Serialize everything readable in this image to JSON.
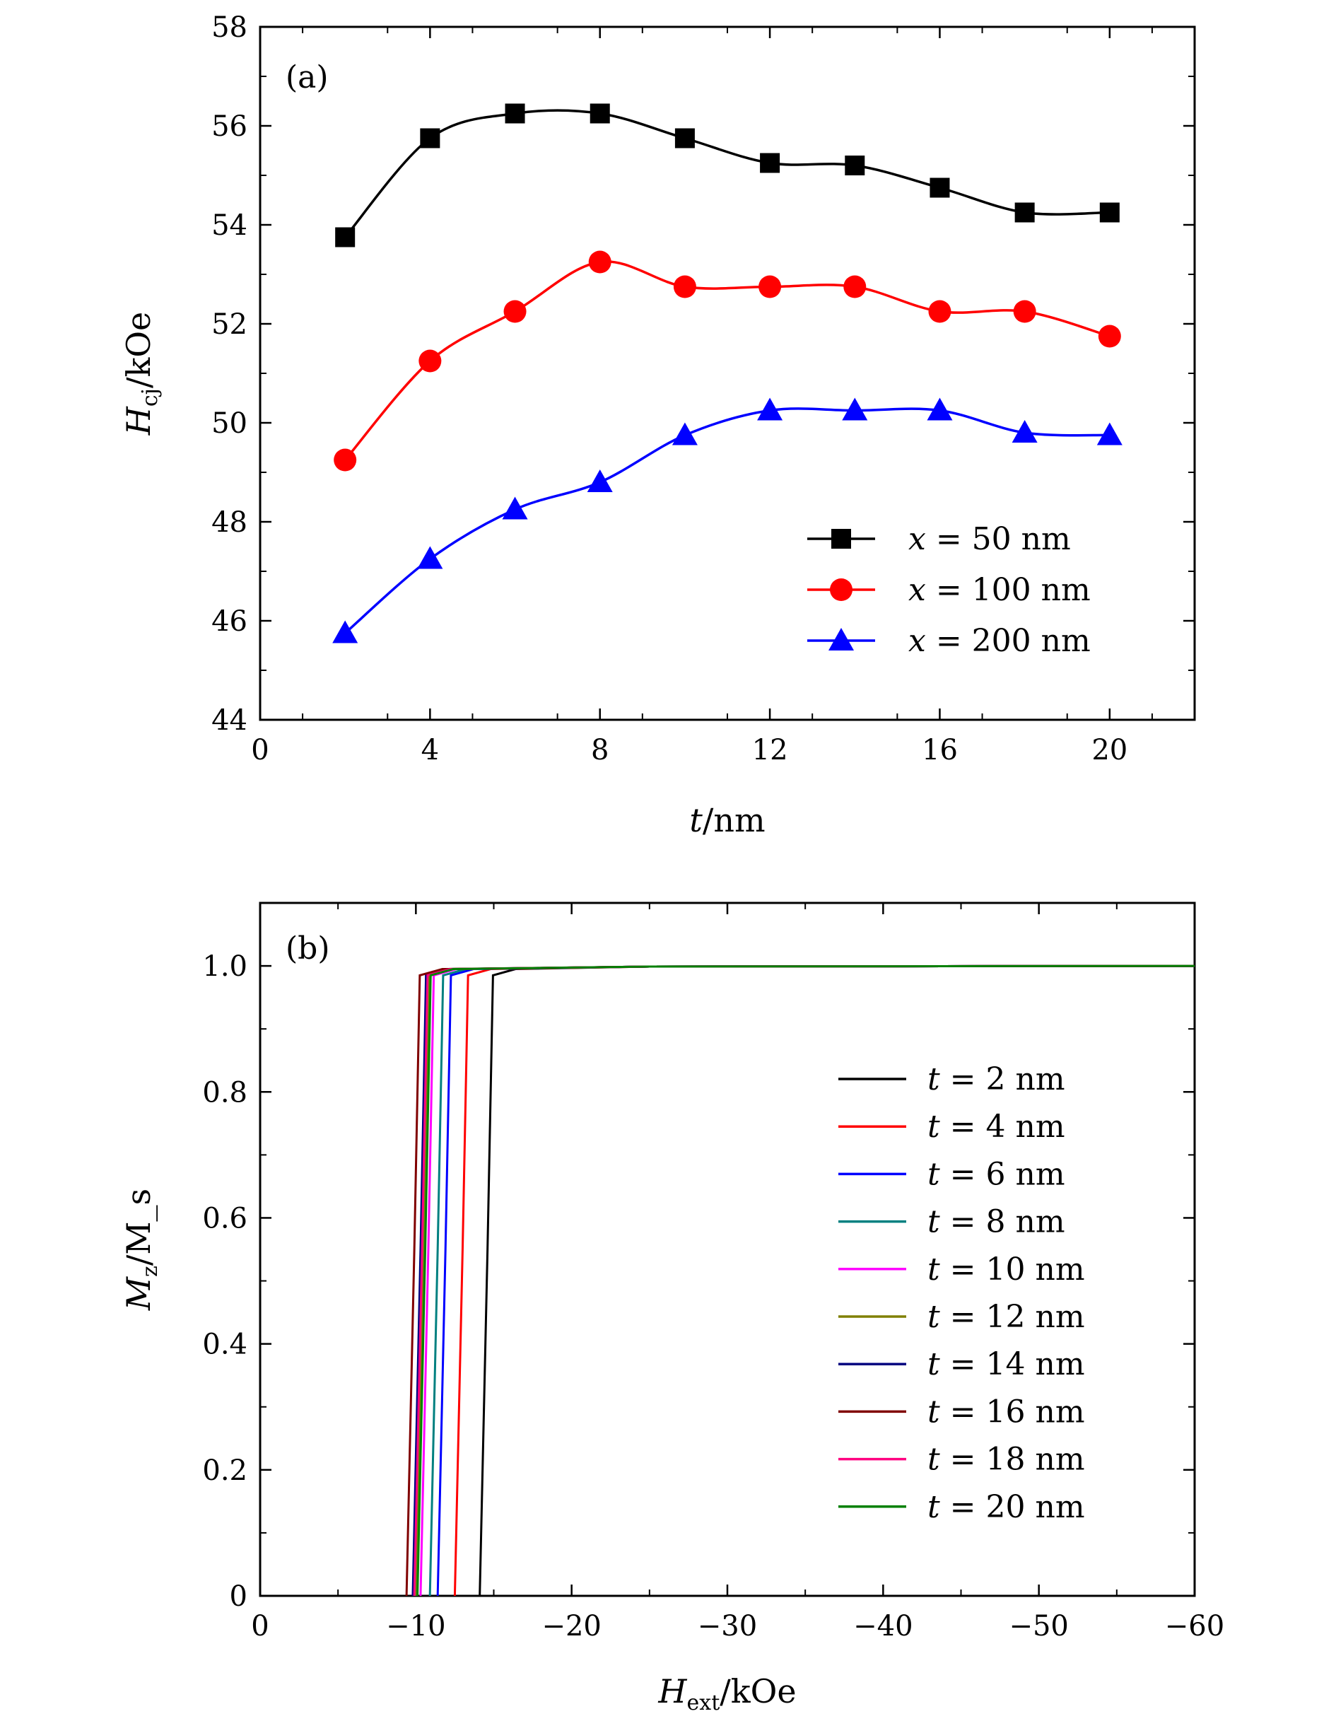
{
  "chart_data": [
    {
      "type": "line",
      "panel_label": "(a)",
      "xlabel": "t/nm",
      "ylabel": "H_cj/kOe",
      "xlim": [
        0,
        22
      ],
      "ylim": [
        44,
        58
      ],
      "xticks": [
        0,
        4,
        8,
        12,
        16,
        20
      ],
      "yticks": [
        44,
        46,
        48,
        50,
        52,
        54,
        56,
        58
      ],
      "x": [
        2,
        4,
        6,
        8,
        10,
        12,
        14,
        16,
        18,
        20
      ],
      "legend_position": "bottom-right",
      "series": [
        {
          "name": "x = 50 nm",
          "color": "#000000",
          "marker": "square",
          "values": [
            53.75,
            55.75,
            56.25,
            56.25,
            55.75,
            55.25,
            55.2,
            54.75,
            54.25,
            54.25
          ]
        },
        {
          "name": "x = 100 nm",
          "color": "#ff0000",
          "marker": "circle",
          "values": [
            49.25,
            51.25,
            52.25,
            53.25,
            52.75,
            52.75,
            52.75,
            52.25,
            52.25,
            51.75
          ]
        },
        {
          "name": "x = 200 nm",
          "color": "#0000ff",
          "marker": "triangle",
          "values": [
            45.75,
            47.25,
            48.25,
            48.8,
            49.75,
            50.25,
            50.25,
            50.25,
            49.8,
            49.75
          ]
        }
      ]
    },
    {
      "type": "line",
      "panel_label": "(b)",
      "xlabel": "H_ext/kOe",
      "ylabel": "M_z/M_s",
      "xlim": [
        0,
        -60
      ],
      "ylim": [
        0,
        1.1
      ],
      "xticks": [
        0,
        -10,
        -20,
        -30,
        -40,
        -50,
        -60
      ],
      "yticks": [
        0,
        0.2,
        0.4,
        0.6,
        0.8,
        1.0
      ],
      "legend_position": "right",
      "series": [
        {
          "name": "t = 2 nm",
          "color": "#000000",
          "switch_field": -14.4
        },
        {
          "name": "t = 4 nm",
          "color": "#ff0000",
          "switch_field": -12.8
        },
        {
          "name": "t = 6 nm",
          "color": "#0000ff",
          "switch_field": -11.7
        },
        {
          "name": "t = 8 nm",
          "color": "#008080",
          "switch_field": -11.2
        },
        {
          "name": "t = 10 nm",
          "color": "#ff00ff",
          "switch_field": -10.6
        },
        {
          "name": "t = 12 nm",
          "color": "#808000",
          "switch_field": -10.3
        },
        {
          "name": "t = 14 nm",
          "color": "#000080",
          "switch_field": -10.1
        },
        {
          "name": "t = 16 nm",
          "color": "#800000",
          "switch_field": -9.7
        },
        {
          "name": "t = 18 nm",
          "color": "#ff0080",
          "switch_field": -10.2
        },
        {
          "name": "t = 20 nm",
          "color": "#008000",
          "switch_field": -10.4
        }
      ]
    }
  ]
}
